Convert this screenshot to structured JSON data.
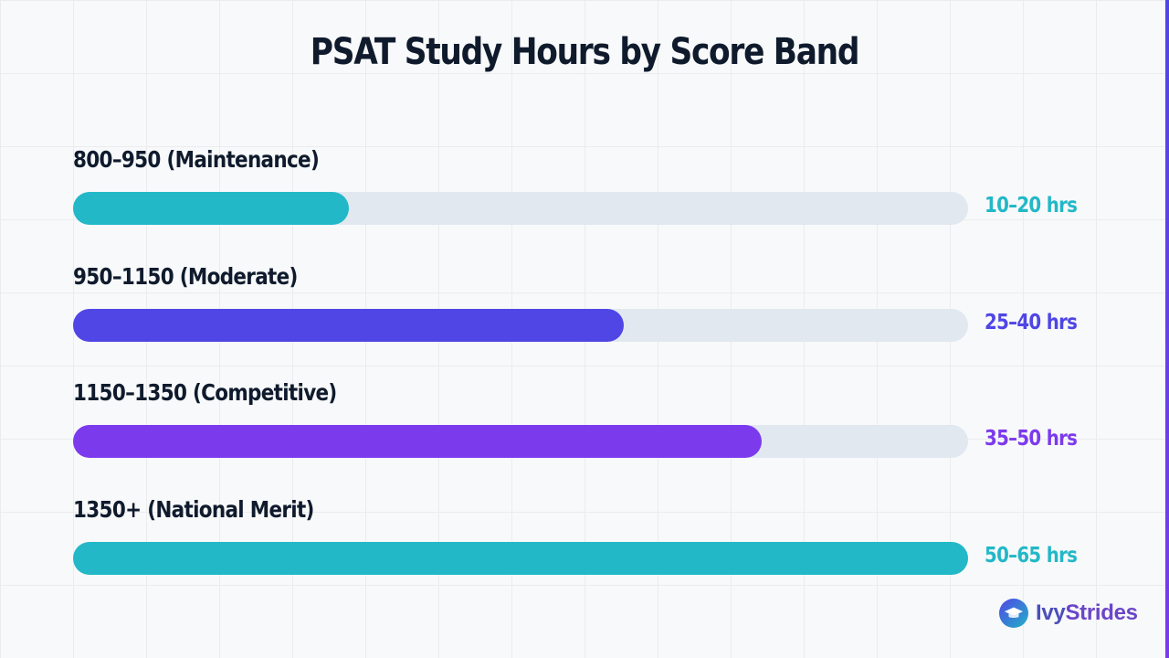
{
  "chart_data": {
    "type": "bar",
    "orientation": "horizontal",
    "title": "PSAT Study Hours by Score Band",
    "categories": [
      "800–950 (Maintenance)",
      "950–1150 (Moderate)",
      "1150–1350 (Competitive)",
      "1350+ (National Merit)"
    ],
    "value_labels": [
      "10–20 hrs",
      "25–40 hrs",
      "35–50 hrs",
      "50–65 hrs"
    ],
    "values": [
      20,
      40,
      50,
      65
    ],
    "xlim": [
      0,
      65
    ],
    "grid": false,
    "legend": "none",
    "colors": [
      "#22b8c8",
      "#4f46e5",
      "#7c3aed",
      "#22b8c8"
    ]
  },
  "brand": {
    "name_part1": "Ivy",
    "name_part2": "Strides",
    "icon": "graduation-cap-icon"
  }
}
